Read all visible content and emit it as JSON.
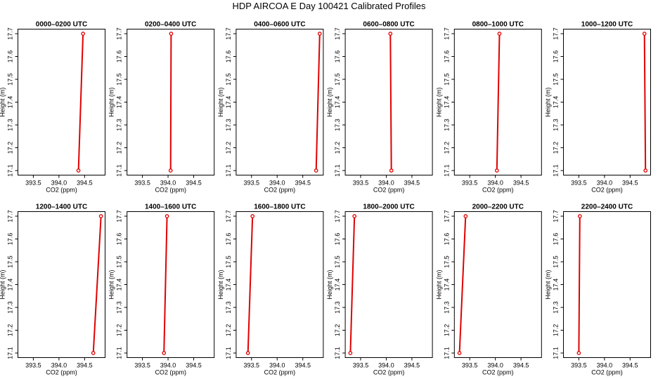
{
  "title": "HDP AIRCOA E  Day 100421  Calibrated Profiles",
  "colors": {
    "profile": "#e00000",
    "frame": "#000000"
  },
  "chart_data": {
    "type": "line",
    "layout": "2 rows x 6 panels",
    "xlabel": "CO2 (ppm)",
    "ylabel": "Height (m)",
    "xlim": [
      393.2,
      394.9
    ],
    "ylim": [
      17.08,
      17.72
    ],
    "x_ticks": [
      393.5,
      394.0,
      394.5
    ],
    "x_tick_labels": [
      "393.5",
      "394.0",
      "394.5"
    ],
    "y_ticks": [
      17.1,
      17.2,
      17.3,
      17.4,
      17.5,
      17.6,
      17.7
    ],
    "y_tick_labels": [
      "17.1",
      "17.2",
      "17.3",
      "17.4",
      "17.5",
      "17.6",
      "17.7"
    ],
    "panels": [
      {
        "title": "0000–0200 UTC",
        "x": [
          394.38,
          394.47
        ],
        "y": [
          17.1,
          17.7
        ]
      },
      {
        "title": "0200–0400 UTC",
        "x": [
          394.05,
          394.06
        ],
        "y": [
          17.1,
          17.7
        ]
      },
      {
        "title": "0400–0600 UTC",
        "x": [
          394.76,
          394.83
        ],
        "y": [
          17.1,
          17.7
        ]
      },
      {
        "title": "0600–0800 UTC",
        "x": [
          394.1,
          394.08
        ],
        "y": [
          17.1,
          17.7
        ]
      },
      {
        "title": "0800–1000 UTC",
        "x": [
          394.03,
          394.08
        ],
        "y": [
          17.1,
          17.7
        ]
      },
      {
        "title": "1000–1200 UTC",
        "x": [
          394.8,
          394.78
        ],
        "y": [
          17.1,
          17.7
        ]
      },
      {
        "title": "1200–1400 UTC",
        "x": [
          394.67,
          394.82
        ],
        "y": [
          17.1,
          17.7
        ]
      },
      {
        "title": "1400–1600 UTC",
        "x": [
          393.92,
          393.98
        ],
        "y": [
          17.1,
          17.7
        ]
      },
      {
        "title": "1600–1800 UTC",
        "x": [
          393.43,
          393.52
        ],
        "y": [
          17.1,
          17.7
        ]
      },
      {
        "title": "1800–2000 UTC",
        "x": [
          393.3,
          393.38
        ],
        "y": [
          17.1,
          17.7
        ]
      },
      {
        "title": "2000–2200 UTC",
        "x": [
          393.3,
          393.42
        ],
        "y": [
          17.1,
          17.7
        ]
      },
      {
        "title": "2200–2400 UTC",
        "x": [
          393.5,
          393.52
        ],
        "y": [
          17.1,
          17.7
        ]
      }
    ]
  }
}
